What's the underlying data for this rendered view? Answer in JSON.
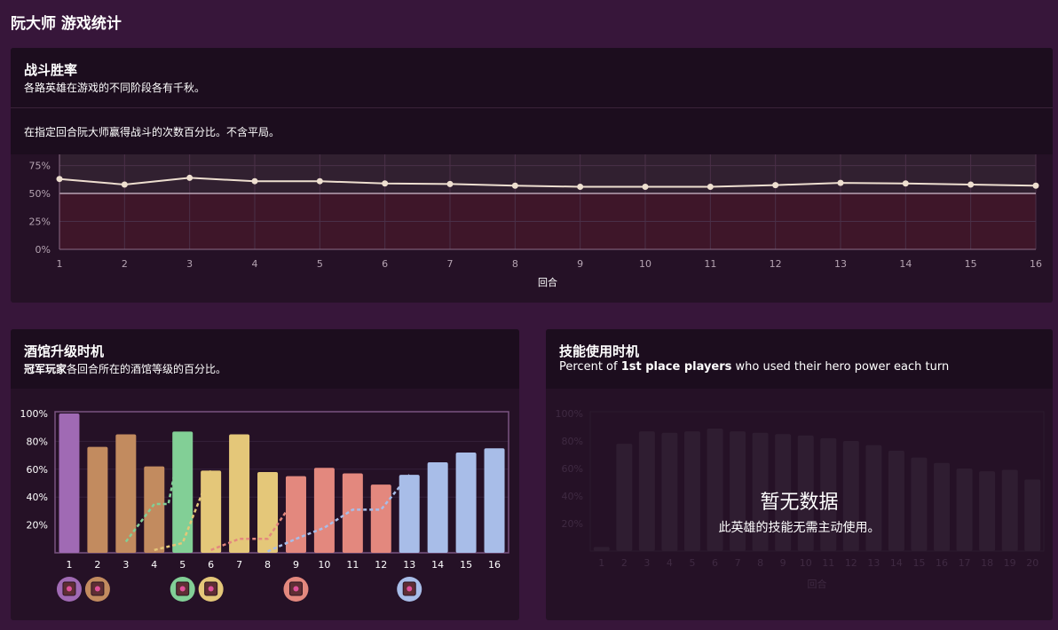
{
  "page": {
    "title": "阮大师 游戏统计"
  },
  "winrate": {
    "title": "战斗胜率",
    "subtitle": "各路英雄在游戏的不同阶段各有千秋。",
    "description": "在指定回合阮大师赢得战斗的次数百分比。不含平局。"
  },
  "tavern": {
    "title": "酒馆升级时机",
    "subtitle_bold": "冠军玩家",
    "subtitle_rest": "各回合所在的酒馆等级的百分比。"
  },
  "hero_power": {
    "title": "技能使用时机",
    "subtitle_pre": "Percent of ",
    "subtitle_bold": "1st place players",
    "subtitle_post": " who used their hero power each turn",
    "empty_title": "暂无数据",
    "empty_desc": "此英雄的技能无需主动使用。"
  },
  "chart_data": [
    {
      "type": "line",
      "name": "winrate",
      "x": [
        1,
        2,
        3,
        4,
        5,
        6,
        7,
        8,
        9,
        10,
        11,
        12,
        13,
        14,
        15,
        16
      ],
      "y": [
        63,
        58,
        64,
        61,
        61,
        59,
        58.5,
        57,
        56,
        56,
        56,
        57.5,
        59.5,
        59,
        58,
        57
      ],
      "xlabel": "回合",
      "ylabel": "",
      "yticks": [
        "0%",
        "25%",
        "50%",
        "75%"
      ],
      "ylim": [
        0,
        85
      ],
      "reference_line": 50,
      "grid": true,
      "colors": {
        "line": "#eedfd0",
        "above": "#312030",
        "below": "#3e1629"
      }
    },
    {
      "type": "bar",
      "name": "tavern_tier",
      "categories": [
        "1",
        "2",
        "3",
        "4",
        "5",
        "6",
        "7",
        "8",
        "9",
        "10",
        "11",
        "12",
        "13",
        "14",
        "15",
        "16"
      ],
      "values": [
        100,
        76,
        85,
        62,
        87,
        59,
        85,
        58,
        55,
        61,
        57,
        49,
        56,
        65,
        72,
        75
      ],
      "tier": [
        1,
        2,
        2,
        2,
        3,
        4,
        4,
        4,
        5,
        5,
        5,
        5,
        6,
        6,
        6,
        6
      ],
      "ylim": [
        0,
        100
      ],
      "yticks": [
        "20%",
        "40%",
        "60%",
        "80%",
        "100%"
      ],
      "tier_colors": [
        "#a06ab4",
        "#c28b5f",
        "#82cf96",
        "#e4c779",
        "#e3887e",
        "#a8bde8"
      ],
      "dashed_lines": [
        {
          "tier": 3,
          "color": "#82cf96",
          "points": [
            [
              3,
              8
            ],
            [
              4,
              35
            ],
            [
              4.5,
              35
            ],
            [
              5,
              87
            ]
          ]
        },
        {
          "tier": 4,
          "color": "#e4c779",
          "points": [
            [
              4,
              2
            ],
            [
              5,
              7
            ],
            [
              6,
              59
            ]
          ]
        },
        {
          "tier": 5,
          "color": "#e3887e",
          "points": [
            [
              6,
              2
            ],
            [
              7,
              10
            ],
            [
              8,
              10
            ],
            [
              9,
              40
            ],
            [
              9,
              55
            ]
          ]
        },
        {
          "tier": 6,
          "color": "#a8bde8",
          "points": [
            [
              8,
              1
            ],
            [
              9,
              10
            ],
            [
              10,
              18
            ],
            [
              11,
              31
            ],
            [
              12,
              31
            ],
            [
              13,
              56
            ]
          ]
        }
      ],
      "badges": [
        1,
        2,
        5,
        6,
        9,
        13
      ]
    },
    {
      "type": "bar",
      "name": "hero_power_usage",
      "categories": [
        "1",
        "2",
        "3",
        "4",
        "5",
        "6",
        "7",
        "8",
        "9",
        "10",
        "11",
        "12",
        "13",
        "14",
        "15",
        "16",
        "17",
        "18",
        "19",
        "20"
      ],
      "values": [
        3,
        78,
        87,
        86,
        87,
        89,
        87,
        86,
        85,
        84,
        82,
        80,
        77,
        73,
        68,
        64,
        60,
        58,
        59,
        52
      ],
      "xlabel": "回合",
      "ylim": [
        0,
        100
      ],
      "yticks": [
        "20%",
        "40%",
        "60%",
        "80%",
        "100%"
      ],
      "state": "placeholder"
    }
  ]
}
